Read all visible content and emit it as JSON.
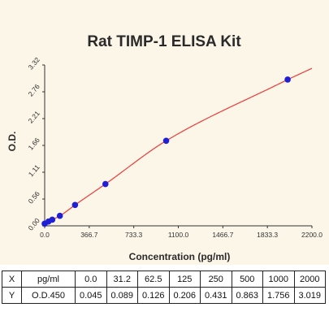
{
  "chart_data": {
    "type": "scatter",
    "title": "Rat TIMP-1 ELISA Kit",
    "xlabel": "Concentration (pg/ml)",
    "ylabel": "O.D.",
    "xlim": [
      0,
      2200
    ],
    "ylim": [
      0,
      3.32
    ],
    "x_ticks": [
      "0.0",
      "366.7",
      "733.3",
      "1100.0",
      "1466.7",
      "1833.3",
      "2200.0"
    ],
    "y_ticks": [
      "0.00",
      "0.56",
      "1.11",
      "1.66",
      "2.21",
      "2.76",
      "3.32"
    ],
    "series": [
      {
        "x": [
          0,
          31.2,
          62.5,
          125,
          250,
          500,
          1000,
          2000
        ],
        "y": [
          0.045,
          0.089,
          0.126,
          0.206,
          0.431,
          0.863,
          1.756,
          3.019
        ]
      }
    ],
    "fit_curve": "smooth standard curve through points",
    "colors": {
      "points": "#1f1fd6",
      "curve": "#ee3a3a",
      "plot_background": "#fbf6e7",
      "axes": "#333333"
    },
    "grid": false
  },
  "table": {
    "rows": [
      {
        "label": "X",
        "unit": "pg/ml",
        "values": [
          "0.0",
          "31.2",
          "62.5",
          "125",
          "250",
          "500",
          "1000",
          "2000"
        ]
      },
      {
        "label": "Y",
        "unit": "O.D.450",
        "values": [
          "0.045",
          "0.089",
          "0.126",
          "0.206",
          "0.431",
          "0.863",
          "1.756",
          "3.019"
        ]
      }
    ]
  }
}
